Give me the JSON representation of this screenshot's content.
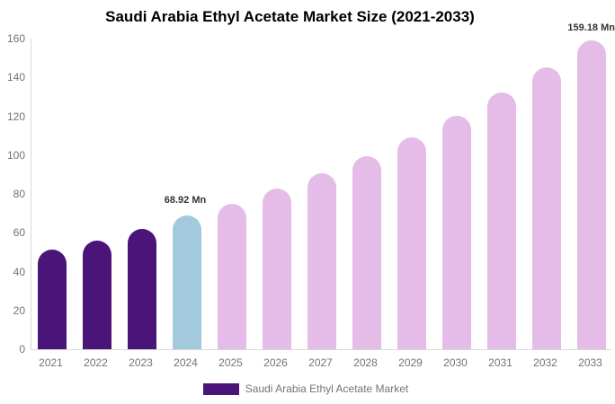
{
  "chart_data": {
    "type": "bar",
    "title": "Saudi Arabia Ethyl Acetate Market Size (2021-2033)",
    "unit": "Mn",
    "categories": [
      "2021",
      "2022",
      "2023",
      "2024",
      "2025",
      "2026",
      "2027",
      "2028",
      "2029",
      "2030",
      "2031",
      "2032",
      "2033"
    ],
    "values": [
      51.3,
      56.0,
      62.0,
      68.92,
      74.9,
      82.8,
      90.6,
      99.4,
      109.3,
      120.2,
      132.2,
      145.2,
      159.18
    ],
    "bar_roles": [
      "historical",
      "historical",
      "historical",
      "current",
      "forecast",
      "forecast",
      "forecast",
      "forecast",
      "forecast",
      "forecast",
      "forecast",
      "forecast",
      "forecast"
    ],
    "bar_colors": {
      "historical": "#4a1479",
      "current": "#a3c9df",
      "forecast": "#e5bce8"
    },
    "ylim": [
      0,
      160
    ],
    "yticks": [
      0,
      20,
      40,
      60,
      80,
      100,
      120,
      140,
      160
    ],
    "grid": "off",
    "axis_color": "#d9d9d9",
    "tick_text_color": "#737373",
    "annotations": [
      {
        "category": "2024",
        "text": "68.92 Mn"
      },
      {
        "category": "2033",
        "text": "159.18 Mn"
      }
    ],
    "legend": {
      "position": "bottom-center",
      "items": [
        {
          "label": "Saudi Arabia Ethyl Acetate Market",
          "color": "#4a1479"
        }
      ]
    }
  }
}
